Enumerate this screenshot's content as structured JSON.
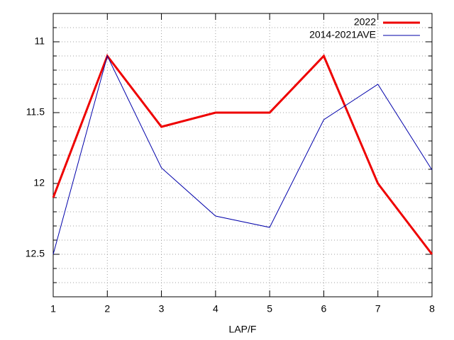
{
  "chart_data": {
    "type": "line",
    "x_label": "LAP/F",
    "x": [
      1,
      2,
      3,
      4,
      5,
      6,
      7,
      8
    ],
    "series": [
      {
        "name": "2022",
        "color": "#ee0000",
        "width": 3,
        "values": [
          12.1,
          11.1,
          11.6,
          11.5,
          11.5,
          11.1,
          12.0,
          12.5
        ]
      },
      {
        "name": "2014-2021AVE",
        "color": "#0000aa",
        "width": 1,
        "values": [
          12.5,
          11.1,
          11.89,
          12.23,
          12.31,
          11.55,
          11.3,
          11.905
        ]
      }
    ],
    "xlim": [
      1,
      8
    ],
    "xticks": [
      1,
      2,
      3,
      4,
      5,
      6,
      7,
      8
    ],
    "ylim": [
      10.8,
      12.8
    ],
    "y_reversed": true,
    "yticks": [
      11,
      11.5,
      12,
      12.5
    ],
    "yminorticks": [
      10.9,
      11.1,
      11.2,
      11.3,
      11.4,
      11.6,
      11.7,
      11.8,
      11.9,
      12.1,
      12.2,
      12.3,
      12.4,
      12.6,
      12.7
    ],
    "grid": true,
    "legend": "top-right"
  }
}
